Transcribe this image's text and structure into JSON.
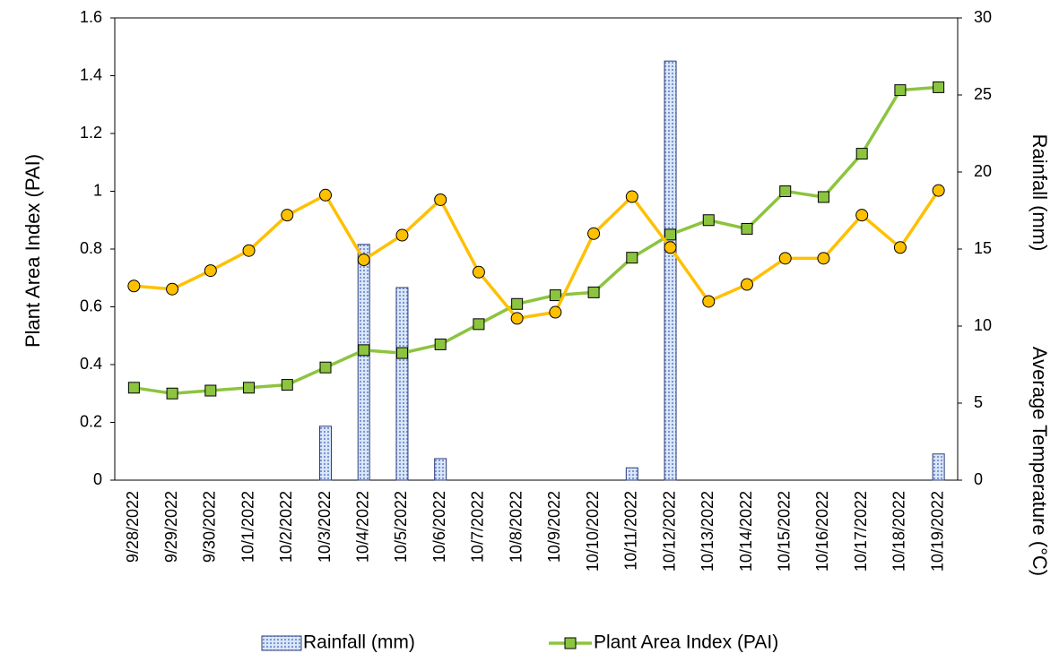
{
  "chart_data": {
    "type": "combo",
    "y_label": "Plant Area Index (PAI)",
    "y2_label": [
      "Rainfall (mm)",
      "Average Temperature (°C)"
    ],
    "categories": [
      "9/28/2022",
      "9/29/2022",
      "9/30/2022",
      "10/1/2022",
      "10/2/2022",
      "10/3/2022",
      "10/4/2022",
      "10/5/2022",
      "10/6/2022",
      "10/7/2022",
      "10/8/2022",
      "10/9/2022",
      "10/10/2022",
      "10/11/2022",
      "10/12/2022",
      "10/13/2022",
      "10/14/2022",
      "10/15/2022",
      "10/16/2022",
      "10/17/2022",
      "10/18/2022",
      "10/19/2022"
    ],
    "series": [
      {
        "name": "Rainfall (mm)",
        "type": "bar",
        "axis": "y2",
        "color": "#9db7e8",
        "values": [
          0,
          0,
          0,
          0,
          0,
          3.5,
          15.3,
          12.5,
          1.4,
          0,
          0,
          0,
          0,
          0.8,
          27.2,
          0,
          0,
          0,
          0,
          0,
          0,
          1.7
        ]
      },
      {
        "name": "Plant Area Index (PAI)",
        "type": "line",
        "axis": "y",
        "color": "#8cc43f",
        "values": [
          0.32,
          0.3,
          0.31,
          0.32,
          0.33,
          0.39,
          0.45,
          0.44,
          0.47,
          0.54,
          0.61,
          0.64,
          0.65,
          0.77,
          0.85,
          0.9,
          0.87,
          1.0,
          0.98,
          1.13,
          1.35,
          1.36
        ]
      },
      {
        "type": "line",
        "axis": "y2",
        "color": "#ffc000",
        "values": [
          12.6,
          12.4,
          13.6,
          14.9,
          17.2,
          18.5,
          14.3,
          15.9,
          18.2,
          13.5,
          10.5,
          10.9,
          16.0,
          18.4,
          15.1,
          11.6,
          12.7,
          14.4,
          14.4,
          17.2,
          15.1,
          18.8
        ]
      }
    ],
    "ylim": [
      0,
      1.6
    ],
    "yticks": [
      0,
      0.2,
      0.4,
      0.6,
      0.8,
      1,
      1.2,
      1.4,
      1.6
    ],
    "y2lim": [
      0,
      30
    ],
    "y2ticks": [
      0,
      5,
      10,
      15,
      20,
      25,
      30
    ]
  }
}
